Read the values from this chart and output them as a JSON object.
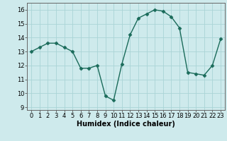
{
  "x": [
    0,
    1,
    2,
    3,
    4,
    5,
    6,
    7,
    8,
    9,
    10,
    11,
    12,
    13,
    14,
    15,
    16,
    17,
    18,
    19,
    20,
    21,
    22,
    23
  ],
  "y": [
    13.0,
    13.3,
    13.6,
    13.6,
    13.3,
    13.0,
    11.8,
    11.8,
    12.0,
    9.8,
    9.5,
    12.1,
    14.2,
    15.4,
    15.7,
    16.0,
    15.9,
    15.5,
    14.7,
    11.5,
    11.4,
    11.3,
    12.0,
    13.9
  ],
  "x_labels": [
    "0",
    "1",
    "2",
    "3",
    "4",
    "5",
    "6",
    "7",
    "8",
    "9",
    "10",
    "11",
    "12",
    "13",
    "14",
    "15",
    "16",
    "17",
    "18",
    "19",
    "20",
    "21",
    "22",
    "23"
  ],
  "ylabel_ticks": [
    9,
    10,
    11,
    12,
    13,
    14,
    15,
    16
  ],
  "ylim": [
    8.8,
    16.5
  ],
  "xlim": [
    -0.5,
    23.5
  ],
  "line_color": "#1a6b5a",
  "marker": "D",
  "marker_size": 2.5,
  "bg_color": "#ceeaec",
  "grid_color": "#aad4d6",
  "xlabel": "Humidex (Indice chaleur)",
  "xlabel_fontsize": 7,
  "tick_fontsize": 6,
  "linewidth": 1.0
}
